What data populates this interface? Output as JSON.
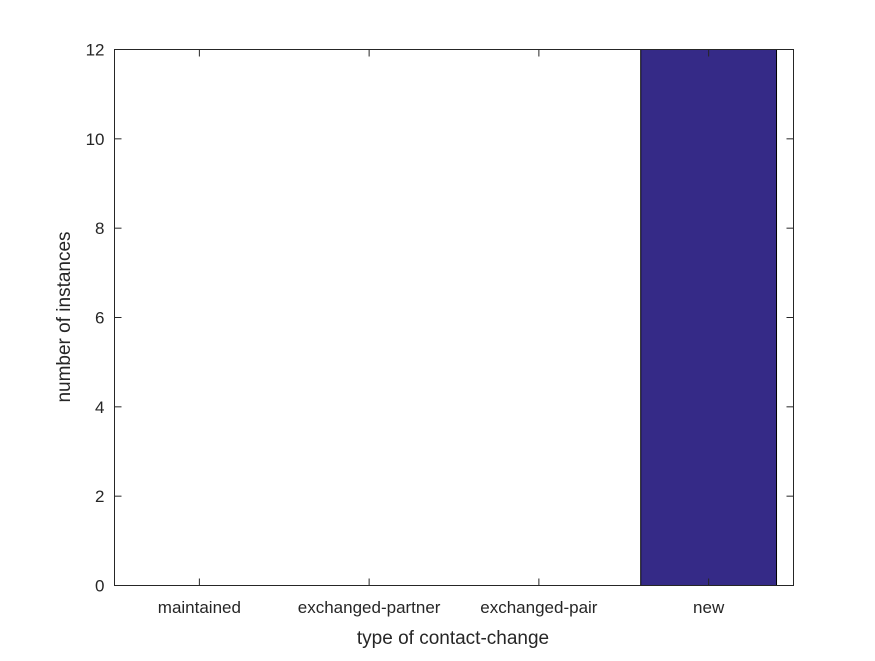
{
  "chart_data": {
    "type": "bar",
    "categories": [
      "maintained",
      "exchanged-partner",
      "exchanged-pair",
      "new"
    ],
    "values": [
      0,
      0,
      0,
      12
    ],
    "title": "",
    "xlabel": "type of contact-change",
    "ylabel": "number of instances",
    "ylim": [
      0,
      12
    ],
    "yticks": [
      0,
      2,
      4,
      6,
      8,
      10,
      12
    ],
    "grid": false,
    "bar_color": "#352a87"
  }
}
